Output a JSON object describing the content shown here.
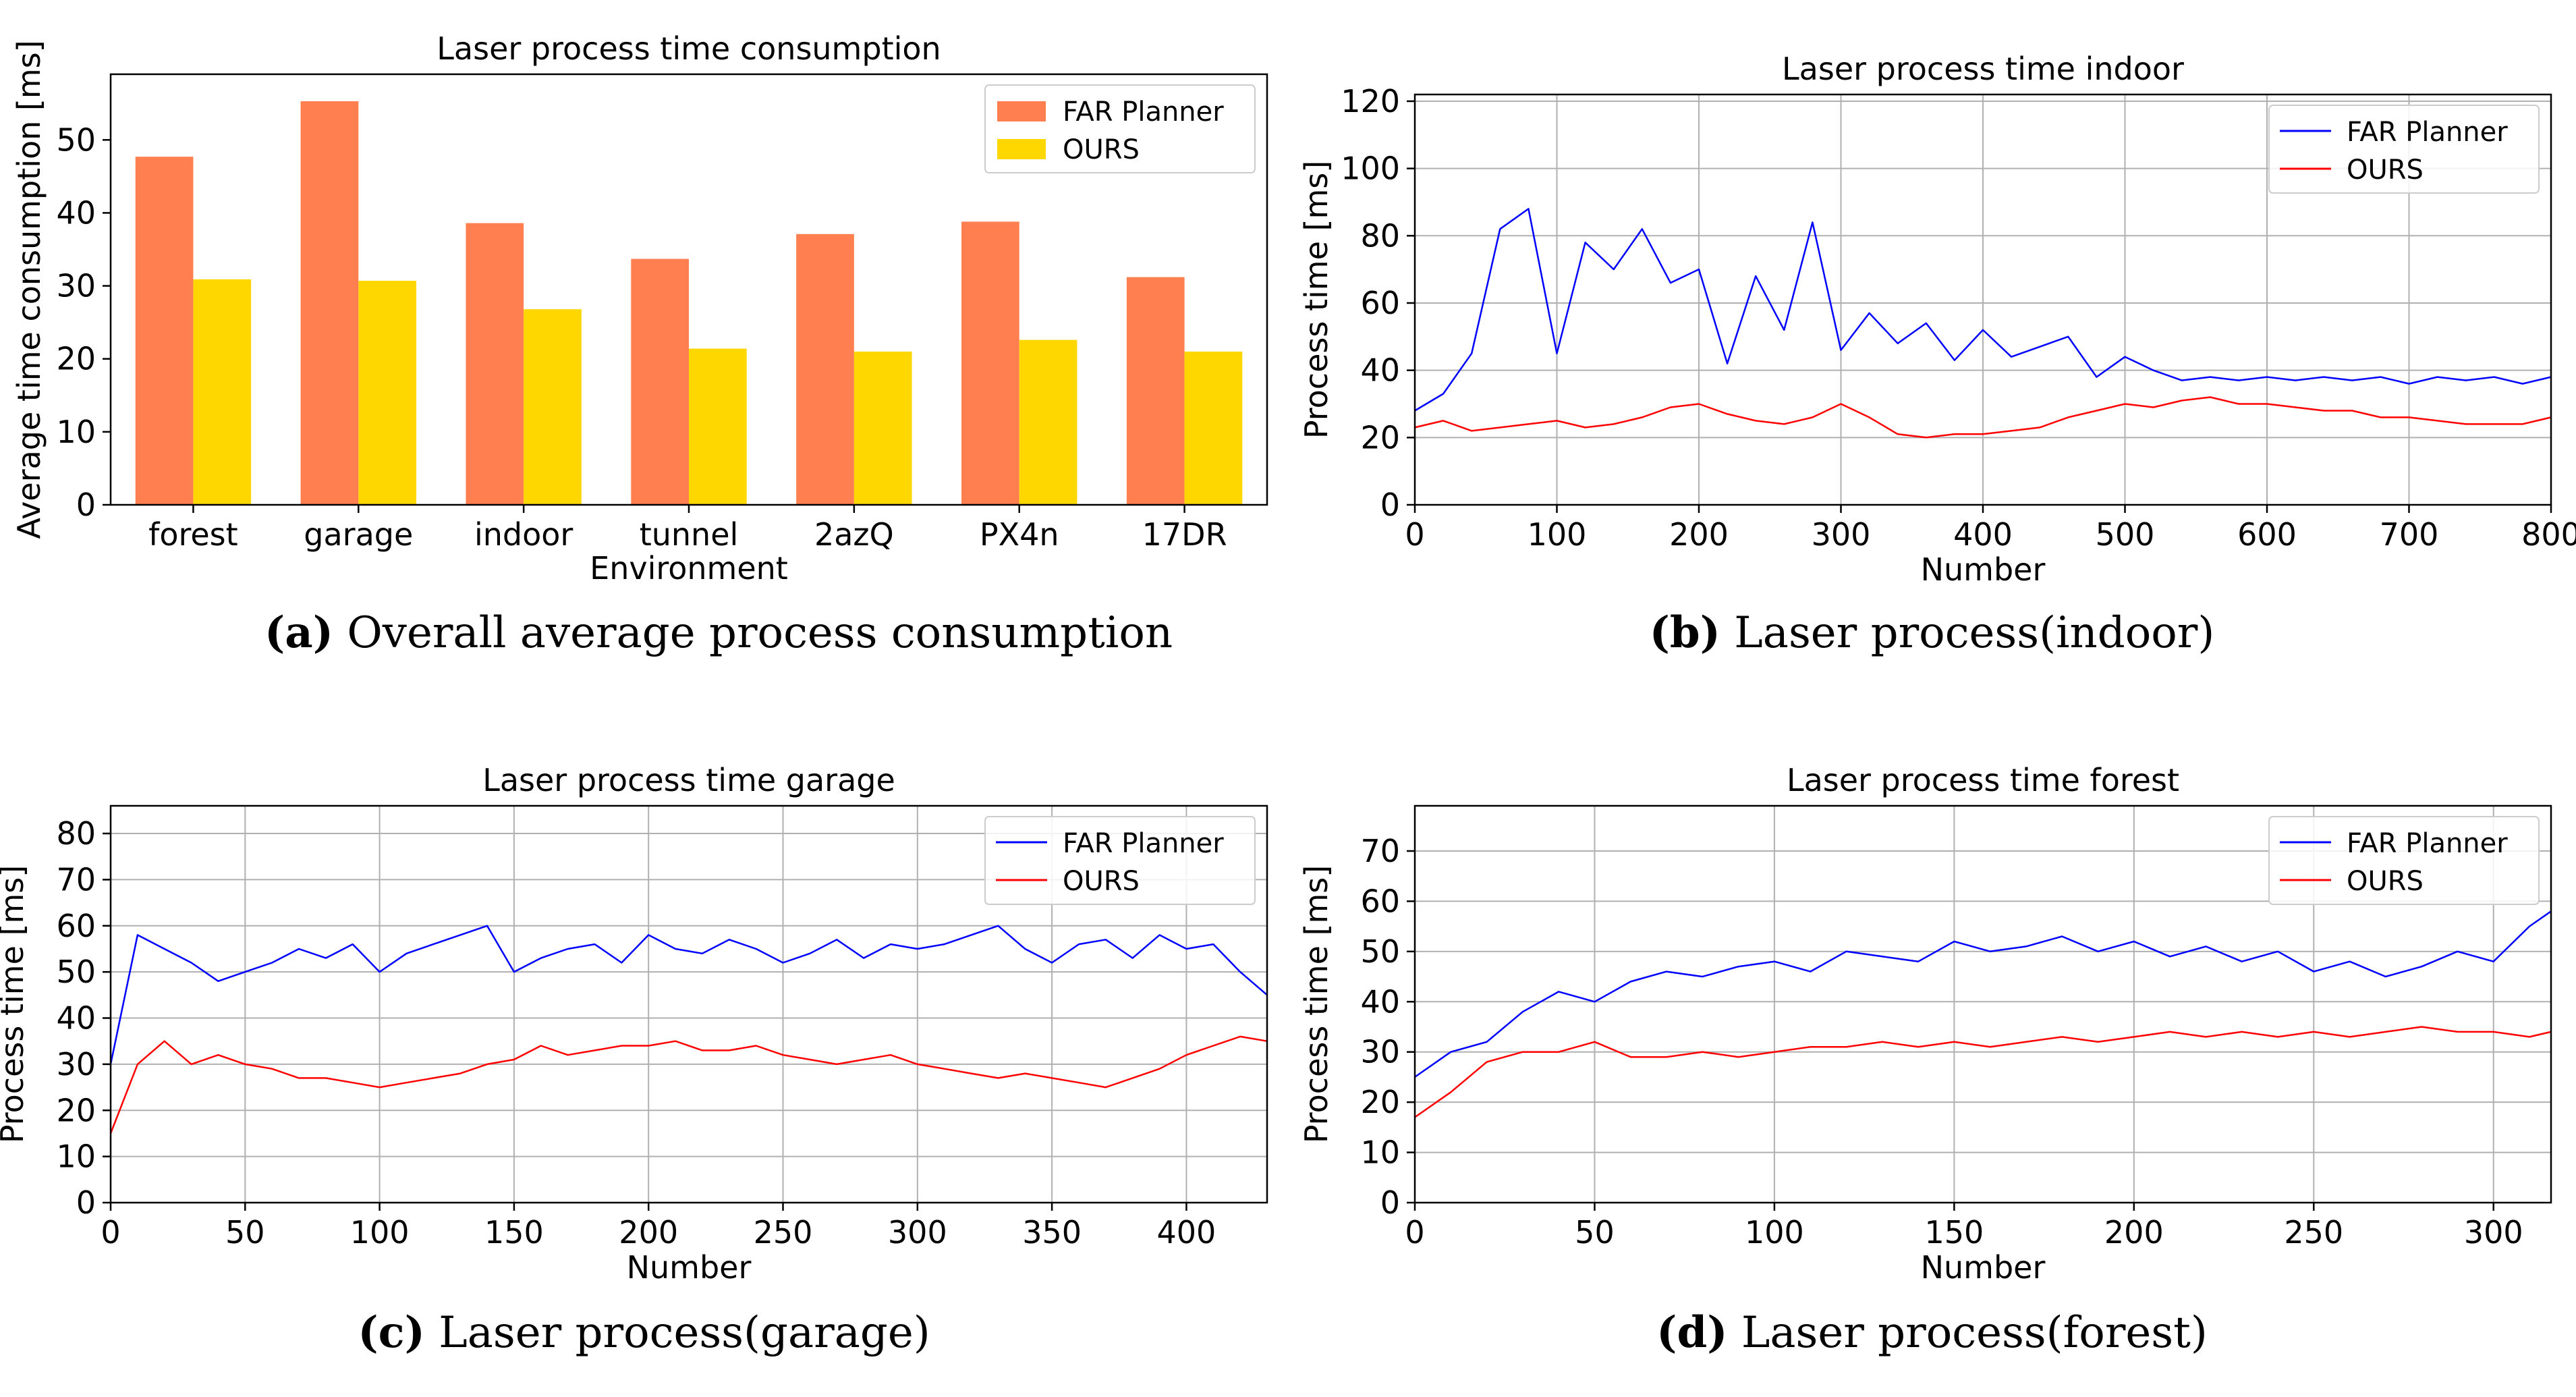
{
  "chart_data": [
    {
      "type": "bar",
      "title": "Laser process time consumption",
      "xlabel": "Environment",
      "ylabel": "Average time consumption [ms]",
      "ylim": [
        0,
        59
      ],
      "yticks": [
        0,
        10,
        20,
        30,
        40,
        50
      ],
      "categories": [
        "forest",
        "garage",
        "indoor",
        "tunnel",
        "2azQ",
        "PX4n",
        "17DR"
      ],
      "series": [
        {
          "name": "FAR Planner",
          "color": "#ff7f50",
          "values": [
            47.7,
            55.3,
            38.6,
            33.7,
            37.1,
            38.8,
            31.2
          ]
        },
        {
          "name": "OURS",
          "color": "#ffd700",
          "values": [
            30.9,
            30.7,
            26.8,
            21.4,
            21.0,
            22.6,
            21.0
          ]
        }
      ],
      "legend": "top-right",
      "caption": {
        "label": "(a)",
        "text": "Overall average process consumption"
      }
    },
    {
      "type": "line",
      "title": "Laser process time indoor",
      "xlabel": "Number",
      "ylabel": "Process time [ms]",
      "xlim": [
        0,
        800
      ],
      "ylim": [
        0,
        122
      ],
      "xticks": [
        0,
        100,
        200,
        300,
        400,
        500,
        600,
        700,
        800
      ],
      "yticks": [
        0,
        20,
        40,
        60,
        80,
        100,
        120
      ],
      "grid": true,
      "legend": "top-right",
      "series": [
        {
          "name": "FAR Planner",
          "color": "#0000ff",
          "x": [
            0,
            20,
            40,
            60,
            80,
            100,
            120,
            140,
            160,
            180,
            200,
            220,
            240,
            260,
            280,
            300,
            320,
            340,
            360,
            380,
            400,
            420,
            440,
            460,
            480,
            500,
            520,
            540,
            560,
            580,
            600,
            620,
            640,
            660,
            680,
            700,
            720,
            740,
            760,
            780,
            800
          ],
          "values": [
            28,
            33,
            45,
            82,
            88,
            45,
            78,
            70,
            82,
            66,
            70,
            42,
            68,
            52,
            84,
            46,
            57,
            48,
            54,
            43,
            52,
            44,
            47,
            50,
            38,
            44,
            40,
            37,
            38,
            37,
            38,
            37,
            38,
            37,
            38,
            36,
            38,
            37,
            38,
            36,
            38
          ]
        },
        {
          "name": "OURS",
          "color": "#ff0000",
          "x": [
            0,
            20,
            40,
            60,
            80,
            100,
            120,
            140,
            160,
            180,
            200,
            220,
            240,
            260,
            280,
            300,
            320,
            340,
            360,
            380,
            400,
            420,
            440,
            460,
            480,
            500,
            520,
            540,
            560,
            580,
            600,
            620,
            640,
            660,
            680,
            700,
            720,
            740,
            760,
            780,
            800
          ],
          "values": [
            23,
            25,
            22,
            23,
            24,
            25,
            23,
            24,
            26,
            29,
            30,
            27,
            25,
            24,
            26,
            30,
            26,
            21,
            20,
            21,
            21,
            22,
            23,
            26,
            28,
            30,
            29,
            31,
            32,
            30,
            30,
            29,
            28,
            28,
            26,
            26,
            25,
            24,
            24,
            24,
            26
          ]
        }
      ],
      "caption": {
        "label": "(b)",
        "text": "Laser process(indoor)"
      }
    },
    {
      "type": "line",
      "title": "Laser process time garage",
      "xlabel": "Number",
      "ylabel": "Process time [ms]",
      "xlim": [
        0,
        430
      ],
      "ylim": [
        0,
        86
      ],
      "xticks": [
        0,
        50,
        100,
        150,
        200,
        250,
        300,
        350,
        400
      ],
      "yticks": [
        0,
        10,
        20,
        30,
        40,
        50,
        60,
        70,
        80
      ],
      "grid": true,
      "legend": "top-right",
      "series": [
        {
          "name": "FAR Planner",
          "color": "#0000ff",
          "x": [
            0,
            10,
            20,
            30,
            40,
            50,
            60,
            70,
            80,
            90,
            100,
            110,
            120,
            130,
            140,
            150,
            160,
            170,
            180,
            190,
            200,
            210,
            220,
            230,
            240,
            250,
            260,
            270,
            280,
            290,
            300,
            310,
            320,
            330,
            340,
            350,
            360,
            370,
            380,
            390,
            400,
            410,
            420,
            430
          ],
          "values": [
            30,
            58,
            55,
            52,
            48,
            50,
            52,
            55,
            53,
            56,
            50,
            54,
            56,
            58,
            60,
            50,
            53,
            55,
            56,
            52,
            58,
            55,
            54,
            57,
            55,
            52,
            54,
            57,
            53,
            56,
            55,
            56,
            58,
            60,
            55,
            52,
            56,
            57,
            53,
            58,
            55,
            56,
            50,
            45
          ]
        },
        {
          "name": "OURS",
          "color": "#ff0000",
          "x": [
            0,
            10,
            20,
            30,
            40,
            50,
            60,
            70,
            80,
            90,
            100,
            110,
            120,
            130,
            140,
            150,
            160,
            170,
            180,
            190,
            200,
            210,
            220,
            230,
            240,
            250,
            260,
            270,
            280,
            290,
            300,
            310,
            320,
            330,
            340,
            350,
            360,
            370,
            380,
            390,
            400,
            410,
            420,
            430
          ],
          "values": [
            15,
            30,
            35,
            30,
            32,
            30,
            29,
            27,
            27,
            26,
            25,
            26,
            27,
            28,
            30,
            31,
            34,
            32,
            33,
            34,
            34,
            35,
            33,
            33,
            34,
            32,
            31,
            30,
            31,
            32,
            30,
            29,
            28,
            27,
            28,
            27,
            26,
            25,
            27,
            29,
            32,
            34,
            36,
            35
          ]
        }
      ],
      "caption": {
        "label": "(c)",
        "text": "Laser process(garage)"
      }
    },
    {
      "type": "line",
      "title": "Laser process time forest",
      "xlabel": "Number",
      "ylabel": "Process time [ms]",
      "xlim": [
        0,
        316
      ],
      "ylim": [
        0,
        79
      ],
      "xticks": [
        0,
        50,
        100,
        150,
        200,
        250,
        300
      ],
      "yticks": [
        0,
        10,
        20,
        30,
        40,
        50,
        60,
        70
      ],
      "grid": true,
      "legend": "top-right",
      "series": [
        {
          "name": "FAR Planner",
          "color": "#0000ff",
          "x": [
            0,
            10,
            20,
            30,
            40,
            50,
            60,
            70,
            80,
            90,
            100,
            110,
            120,
            130,
            140,
            150,
            160,
            170,
            180,
            190,
            200,
            210,
            220,
            230,
            240,
            250,
            260,
            270,
            280,
            290,
            300,
            310,
            316
          ],
          "values": [
            25,
            30,
            32,
            38,
            42,
            40,
            44,
            46,
            45,
            47,
            48,
            46,
            50,
            49,
            48,
            52,
            50,
            51,
            53,
            50,
            52,
            49,
            51,
            48,
            50,
            46,
            48,
            45,
            47,
            50,
            48,
            55,
            58
          ]
        },
        {
          "name": "OURS",
          "color": "#ff0000",
          "x": [
            0,
            10,
            20,
            30,
            40,
            50,
            60,
            70,
            80,
            90,
            100,
            110,
            120,
            130,
            140,
            150,
            160,
            170,
            180,
            190,
            200,
            210,
            220,
            230,
            240,
            250,
            260,
            270,
            280,
            290,
            300,
            310,
            316
          ],
          "values": [
            17,
            22,
            28,
            30,
            30,
            32,
            29,
            29,
            30,
            29,
            30,
            31,
            31,
            32,
            31,
            32,
            31,
            32,
            33,
            32,
            33,
            34,
            33,
            34,
            33,
            34,
            33,
            34,
            35,
            34,
            34,
            33,
            34
          ]
        }
      ],
      "caption": {
        "label": "(d)",
        "text": "Laser process(forest)"
      }
    }
  ]
}
